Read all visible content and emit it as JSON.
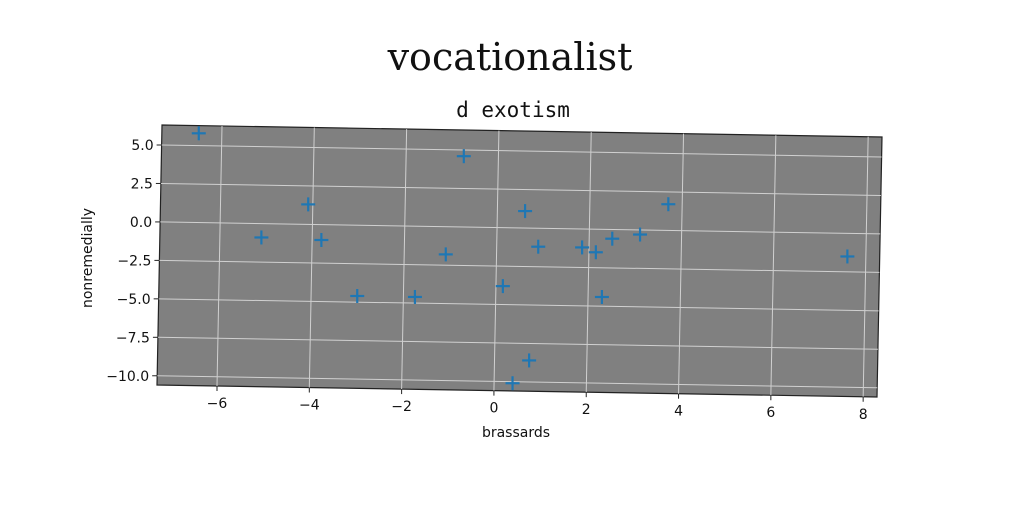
{
  "chart_data": {
    "type": "scatter",
    "title": "vocationalist",
    "subtitle": "d exotism",
    "xlabel": "brassards",
    "ylabel": "nonremedially",
    "xlim": [
      -7.3,
      8.3
    ],
    "ylim": [
      -10.6,
      6.3
    ],
    "xticks": [
      -6,
      -4,
      -2,
      0,
      2,
      4,
      6,
      8
    ],
    "yticks": [
      5.0,
      2.5,
      0.0,
      -2.5,
      -5.0,
      -7.5,
      -10.0
    ],
    "grid": true,
    "marker": "+",
    "colors": {
      "background": "#808080",
      "grid": "#d0d0d0",
      "marker": "#1f77b4"
    },
    "points": [
      {
        "x": -6.5,
        "y": 5.8
      },
      {
        "x": -5.1,
        "y": -0.9
      },
      {
        "x": -4.1,
        "y": 1.3
      },
      {
        "x": -3.8,
        "y": -1.0
      },
      {
        "x": -3.0,
        "y": -4.6
      },
      {
        "x": -1.75,
        "y": -4.6
      },
      {
        "x": -1.1,
        "y": -1.8
      },
      {
        "x": -0.75,
        "y": 4.6
      },
      {
        "x": 0.15,
        "y": -3.8
      },
      {
        "x": 0.4,
        "y": -10.1
      },
      {
        "x": 0.6,
        "y": 1.1
      },
      {
        "x": 0.75,
        "y": -8.6
      },
      {
        "x": 0.9,
        "y": -1.2
      },
      {
        "x": 1.85,
        "y": -1.2
      },
      {
        "x": 2.15,
        "y": -1.5
      },
      {
        "x": 2.3,
        "y": -4.4
      },
      {
        "x": 2.5,
        "y": -0.6
      },
      {
        "x": 3.1,
        "y": -0.3
      },
      {
        "x": 3.7,
        "y": 1.7
      },
      {
        "x": 7.6,
        "y": -1.5
      }
    ]
  }
}
